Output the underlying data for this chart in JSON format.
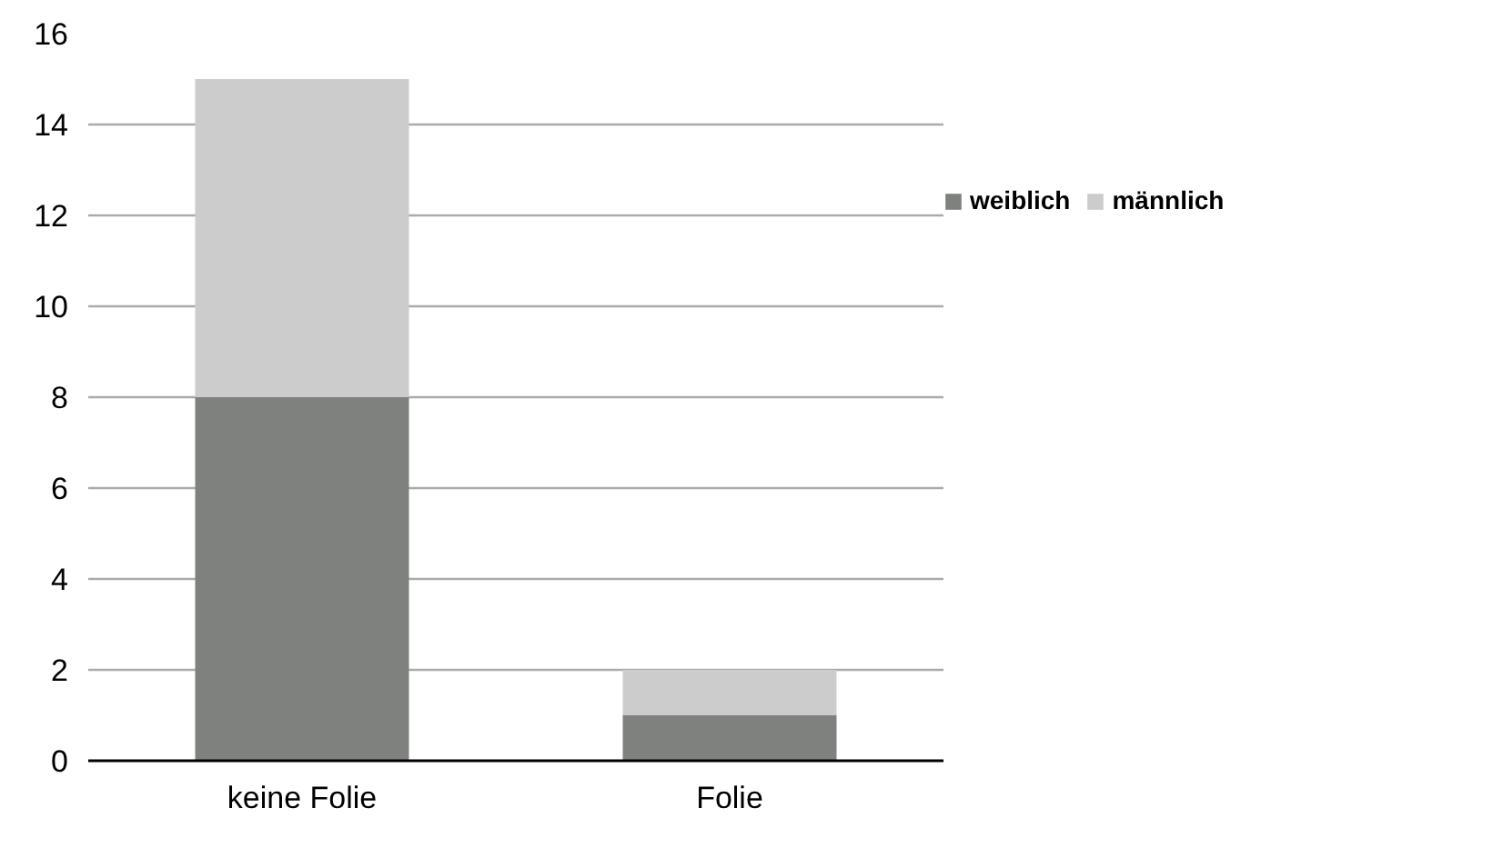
{
  "chart_data": {
    "type": "bar",
    "stacked": true,
    "categories": [
      "keine Folie",
      "Folie"
    ],
    "series": [
      {
        "name": "weiblich",
        "color": "#7f817f",
        "values": [
          8,
          1
        ]
      },
      {
        "name": "männlich",
        "color": "#cccccc",
        "values": [
          7,
          1
        ]
      }
    ],
    "ylim": [
      0,
      16
    ],
    "yticks": [
      0,
      2,
      4,
      6,
      8,
      10,
      12,
      14,
      16
    ],
    "grid": "y",
    "legend": "right"
  }
}
